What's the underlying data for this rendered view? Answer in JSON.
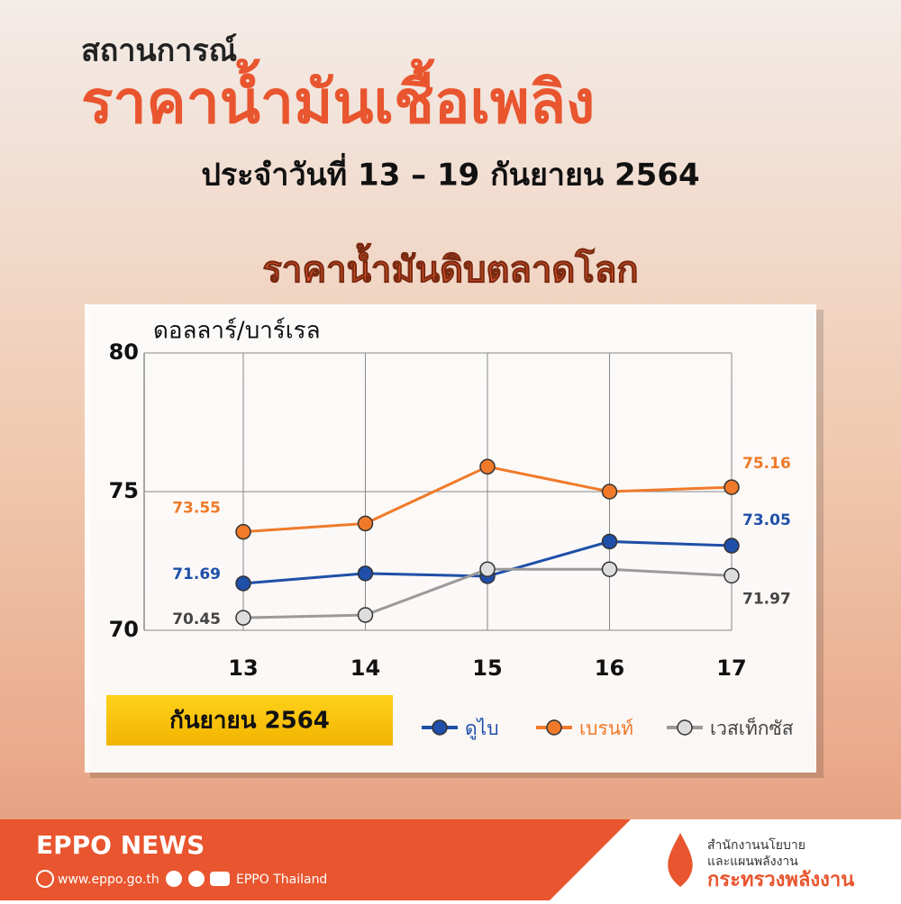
{
  "header": {
    "kicker": "สถานการณ์",
    "title": "ราคาน้ำมันเชื้อเพลิง",
    "subtitle": "ประจำวันที่ 13 – 19 กันยายน 2564",
    "section": "ราคาน้ำมันดิบตลาดโลก"
  },
  "chart_data": {
    "type": "line",
    "y_label": "ดอลลาร์/บาร์เรล",
    "x_label": "กันยายน 2564",
    "categories": [
      "13",
      "14",
      "15",
      "16",
      "17"
    ],
    "series": [
      {
        "name": "ดูไบ",
        "color": "#1f4fa8",
        "values": [
          71.69,
          72.05,
          71.95,
          73.2,
          73.05
        ]
      },
      {
        "name": "เบรนท์",
        "color": "#f07a2a",
        "values": [
          73.55,
          73.85,
          75.9,
          75.0,
          75.16
        ]
      },
      {
        "name": "เวสเท็กซัส",
        "color": "#9a9a9a",
        "values": [
          70.45,
          70.55,
          72.2,
          72.2,
          71.97
        ]
      }
    ],
    "ylim": [
      70,
      80
    ],
    "yticks": [
      70,
      75,
      80
    ],
    "grid": true
  },
  "footer": {
    "brand": "EPPO NEWS",
    "website": "www.eppo.go.th",
    "social": "EPPO Thailand",
    "org_line1": "สำนักงานนโยบาย",
    "org_line2": "และแผนพลังงาน",
    "ministry": "กระทรวงพลังงาน"
  }
}
